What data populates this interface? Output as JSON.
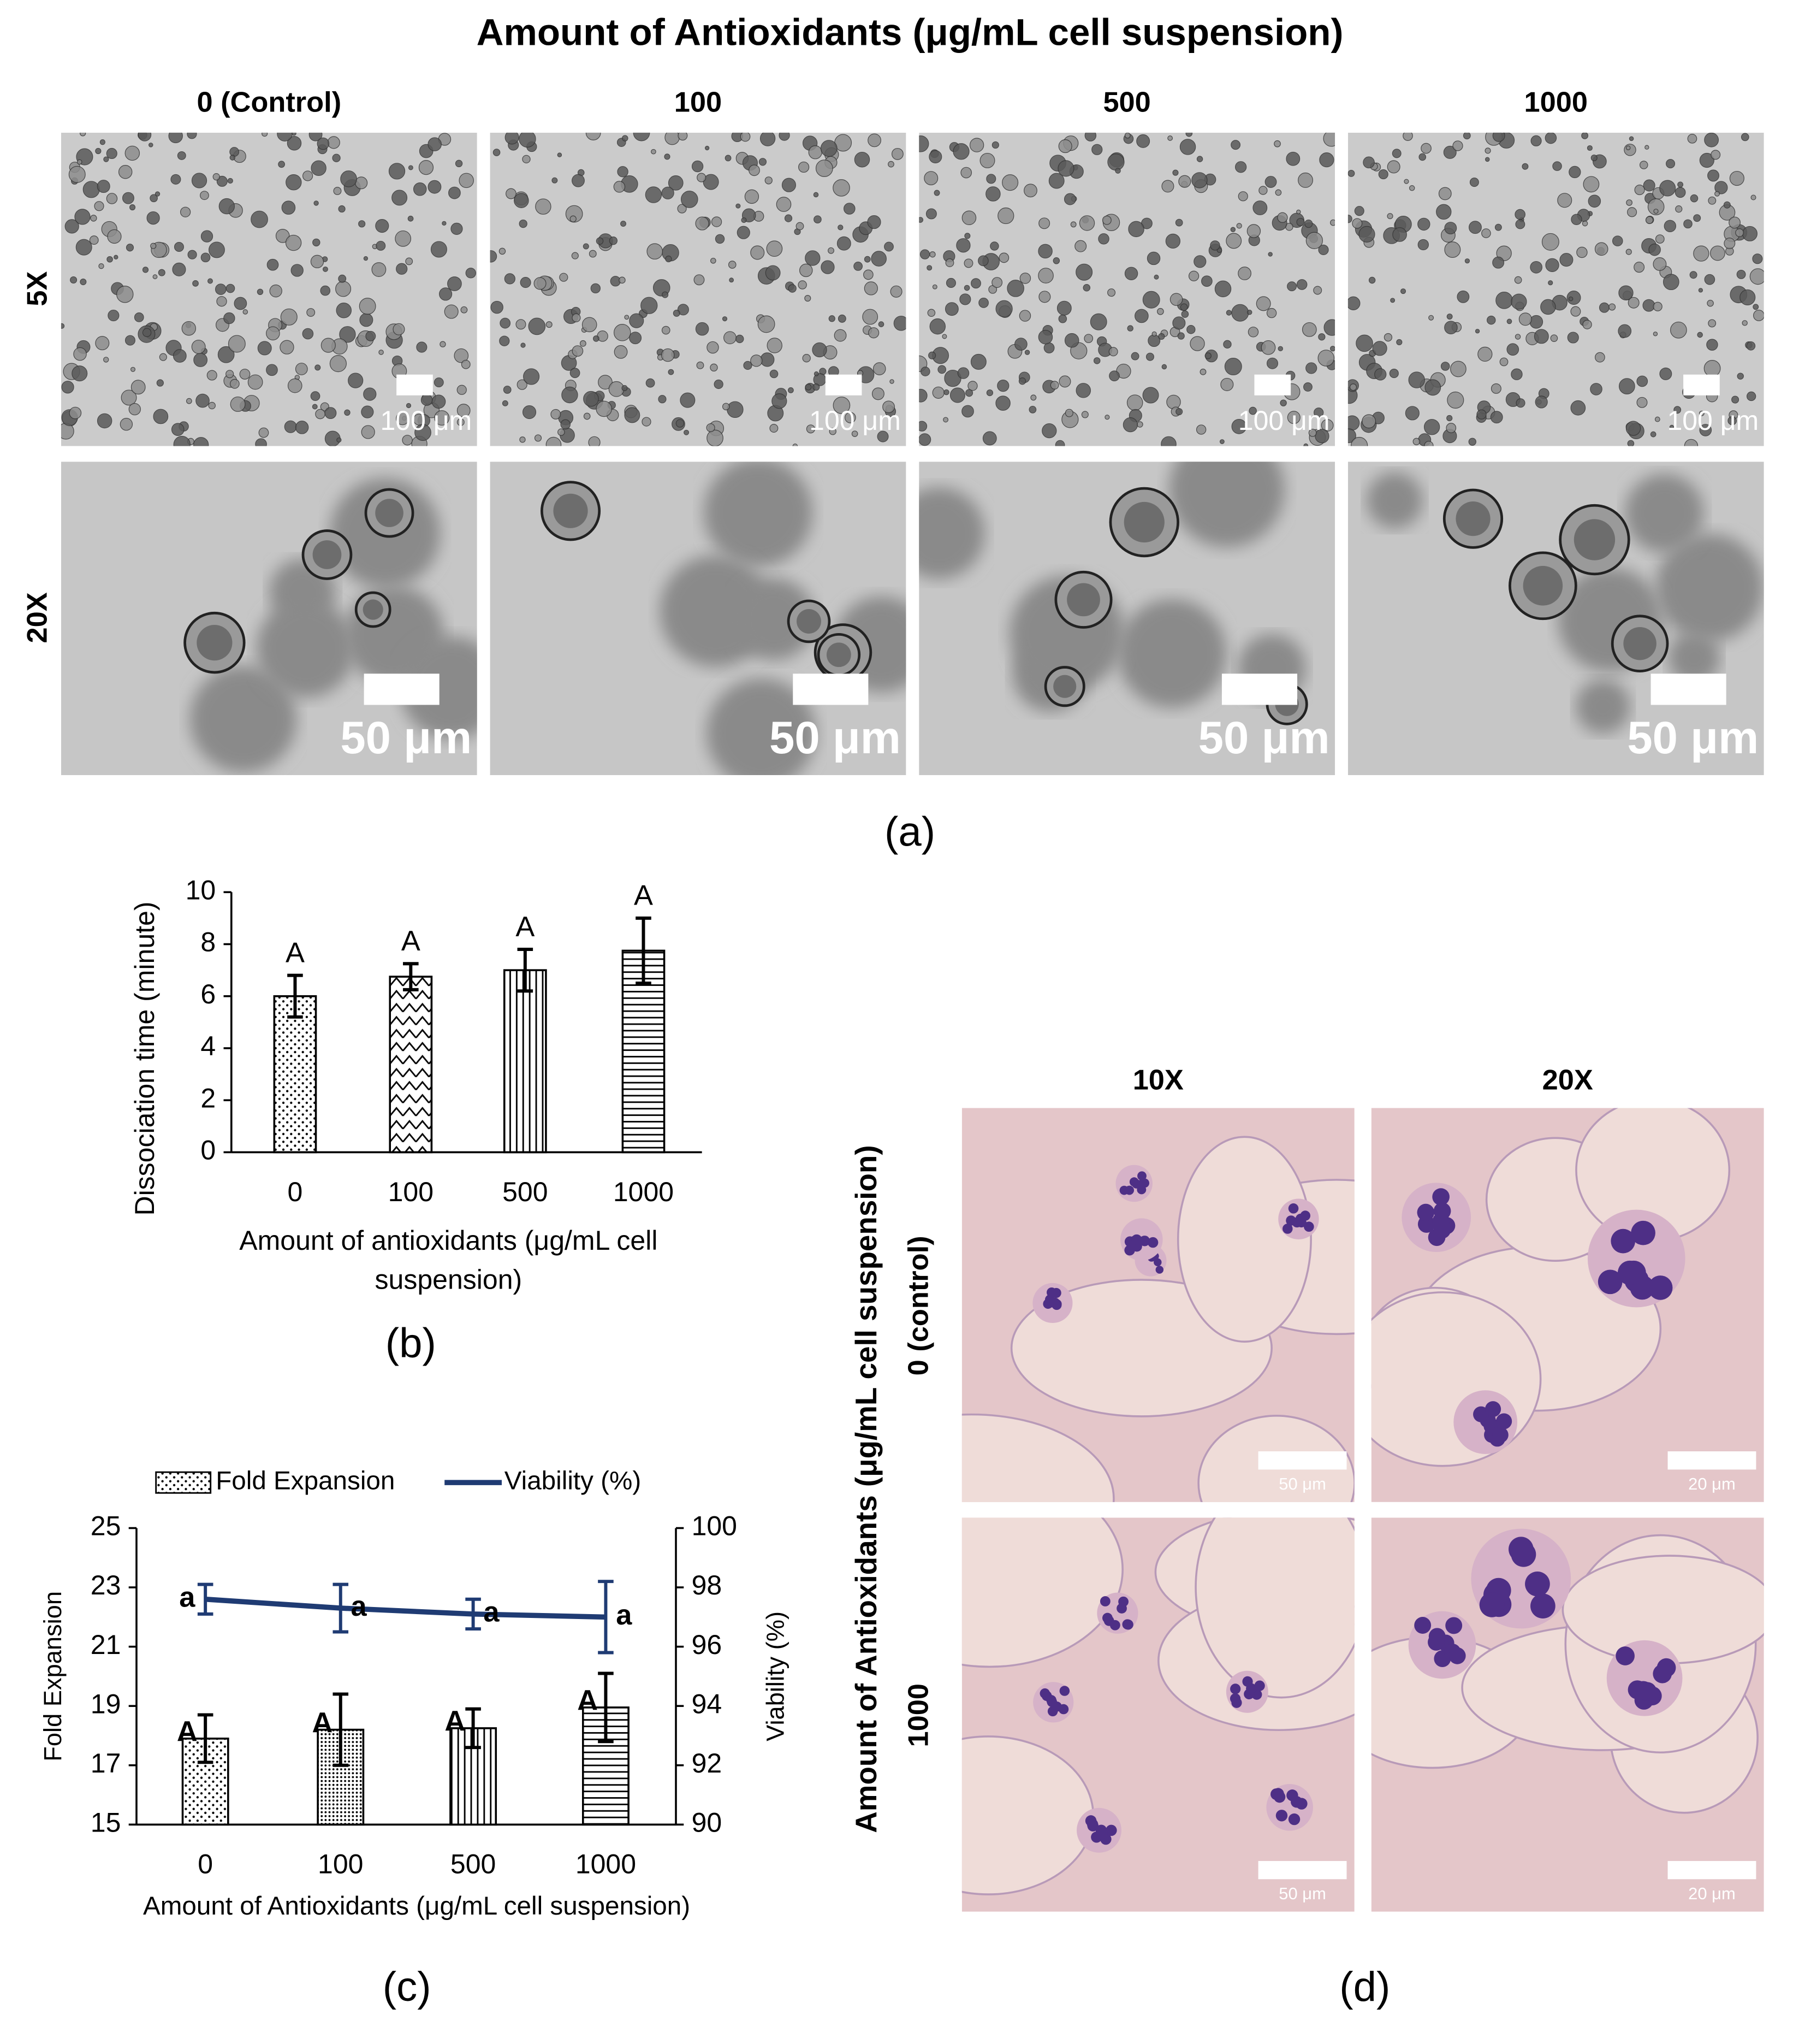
{
  "panel_a": {
    "title": "Amount of Antioxidants (μg/mL cell suspension)",
    "columns": [
      "0 (Control)",
      "100",
      "500",
      "1000"
    ],
    "rows": [
      "5X",
      "20X"
    ],
    "scale_labels": [
      "100 μm",
      "50 μm"
    ],
    "panel_label": "(a)"
  },
  "panel_d": {
    "ylabel": "Amount of Antioxidants (μg/mL cell suspension)",
    "columns": [
      "10X",
      "20X"
    ],
    "rows": [
      "0 (control)",
      "1000"
    ],
    "scale_labels": [
      "50 μm",
      "20 μm"
    ],
    "panel_label": "(d)"
  },
  "chart_data": [
    {
      "type": "bar",
      "panel_label": "(b)",
      "categories": [
        "0",
        "100",
        "500",
        "1000"
      ],
      "values": [
        6.0,
        6.75,
        7.0,
        7.75
      ],
      "errors": [
        0.8,
        0.5,
        0.8,
        1.25
      ],
      "letters": [
        "A",
        "A",
        "A",
        "A"
      ],
      "color": "#000000",
      "ylim": [
        0,
        10
      ],
      "yticks": [
        0,
        2,
        4,
        6,
        8,
        10
      ],
      "ylabel": "Dissociation time (minute)",
      "xlabel": "Amount of antioxidants (μg/mL cell suspension)"
    },
    {
      "type": "bar",
      "panel_label": "(c)",
      "categories": [
        "0",
        "100",
        "500",
        "1000"
      ],
      "series": [
        {
          "name": "Fold Expansion",
          "type": "bar",
          "color": "#000000",
          "values": [
            17.9,
            18.2,
            18.25,
            18.95
          ],
          "errors": [
            0.8,
            1.2,
            0.65,
            1.15
          ],
          "letters": [
            "A",
            "A",
            "A",
            "A"
          ]
        },
        {
          "name": "Viability (%)",
          "type": "line",
          "axis": "y2",
          "color": "#1f3b73",
          "values": [
            97.6,
            97.3,
            97.1,
            97.0
          ],
          "errors": [
            0.5,
            0.8,
            0.5,
            1.2
          ],
          "letters": [
            "a",
            "a",
            "a",
            "a"
          ]
        }
      ],
      "ylim": [
        15,
        25
      ],
      "yticks": [
        15,
        17,
        19,
        21,
        23,
        25
      ],
      "y2lim": [
        90,
        100
      ],
      "y2ticks": [
        90,
        92,
        94,
        96,
        98,
        100
      ],
      "ylabel": "Fold Expansion",
      "y2label": "Viability (%)",
      "xlabel": "Amount of Antioxidants (μg/mL cell suspension)",
      "legend": "top"
    }
  ]
}
